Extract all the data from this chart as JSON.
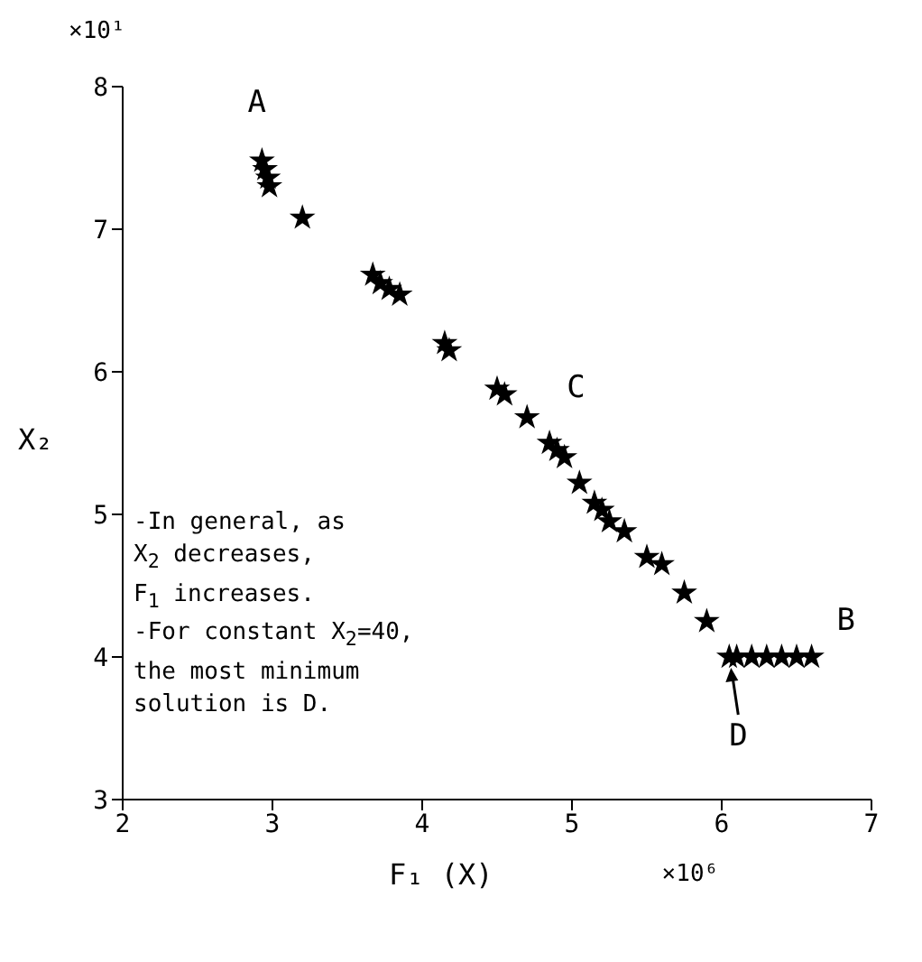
{
  "chart_data": {
    "type": "scatter",
    "xlabel": "F₁ (X)",
    "ylabel": "X₂",
    "xlim": [
      2,
      7
    ],
    "ylim": [
      3,
      8
    ],
    "xticks": [
      2,
      3,
      4,
      5,
      6,
      7
    ],
    "yticks": [
      3,
      4,
      5,
      6,
      7,
      8
    ],
    "grid": false,
    "legend": false,
    "marker": "star",
    "series": [
      {
        "color": "#000000",
        "x": [
          2.93,
          2.95,
          2.97,
          2.98,
          3.2,
          3.67,
          3.72,
          3.78,
          3.85,
          4.15,
          4.18,
          4.5,
          4.55,
          4.7,
          4.85,
          4.9,
          4.95,
          5.05,
          5.15,
          5.2,
          5.25,
          5.35,
          5.5,
          5.6,
          5.75,
          5.9,
          6.05,
          6.1,
          6.2,
          6.3,
          6.4,
          6.5,
          6.6
        ],
        "values": [
          7.48,
          7.42,
          7.36,
          7.3,
          7.08,
          6.68,
          6.62,
          6.58,
          6.54,
          6.2,
          6.15,
          5.88,
          5.84,
          5.68,
          5.5,
          5.45,
          5.4,
          5.22,
          5.08,
          5.03,
          4.95,
          4.88,
          4.7,
          4.65,
          4.45,
          4.25,
          4.0,
          4.0,
          4.0,
          4.0,
          4.0,
          4.0,
          4.0
        ]
      }
    ],
    "annotations": [
      "×10¹",
      "×10⁶",
      {
        "text": "A",
        "x": 2.93,
        "y": 7.48
      },
      {
        "text": "C",
        "x": 4.7,
        "y": 5.68
      },
      {
        "text": "B",
        "x": 6.6,
        "y": 4.0
      },
      {
        "text": "D",
        "x": 6.05,
        "y": 4.0
      },
      "-In general, as\nX$_{2}$ decreases,\nF$_{1}$ increases.\n-For constant X$_{2}$=40,\nthe most minimum\nsolution is D."
    ]
  }
}
